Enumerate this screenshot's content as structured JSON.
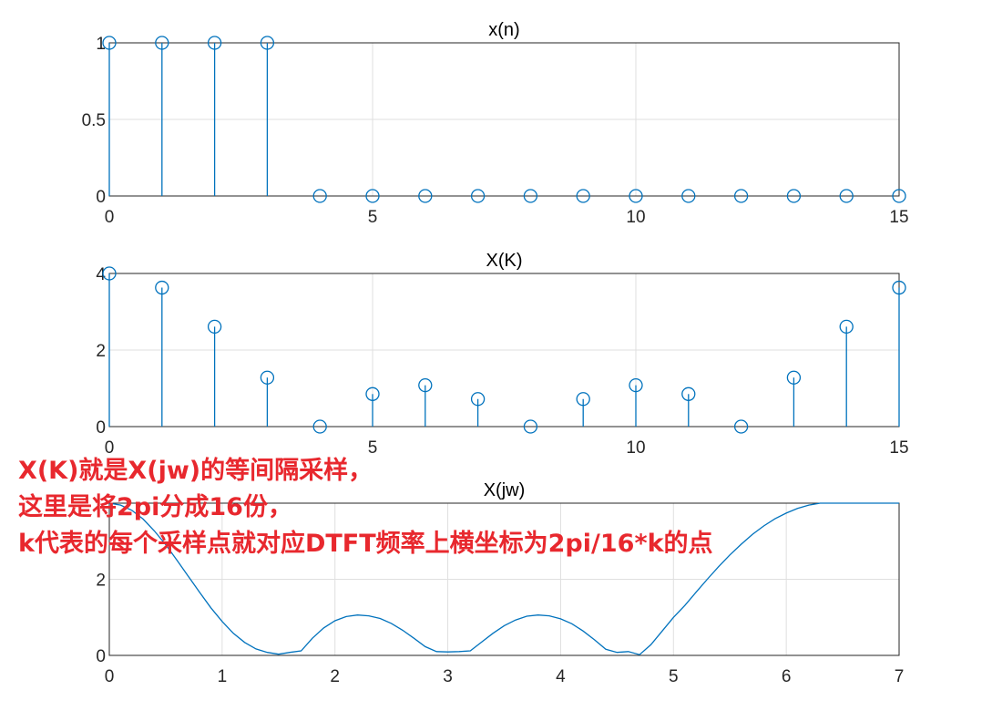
{
  "colors": {
    "series": "#0072bd",
    "annotation": "#e8282e",
    "grid": "#dfdfdf",
    "axis": "#262626"
  },
  "chart_data": [
    {
      "type": "stem",
      "title": "x(n)",
      "xlim": [
        0,
        15
      ],
      "ylim": [
        0,
        1
      ],
      "xticks": [
        0,
        5,
        10,
        15
      ],
      "yticks": [
        0,
        0.5,
        1
      ],
      "grid": true,
      "x": [
        0,
        1,
        2,
        3,
        4,
        5,
        6,
        7,
        8,
        9,
        10,
        11,
        12,
        13,
        14,
        15
      ],
      "y": [
        1,
        1,
        1,
        1,
        0,
        0,
        0,
        0,
        0,
        0,
        0,
        0,
        0,
        0,
        0,
        0
      ]
    },
    {
      "type": "stem",
      "title": "X(K)",
      "xlim": [
        0,
        15
      ],
      "ylim": [
        0,
        4
      ],
      "xticks": [
        0,
        5,
        10,
        15
      ],
      "yticks": [
        0,
        2,
        4
      ],
      "grid": true,
      "x": [
        0,
        1,
        2,
        3,
        4,
        5,
        6,
        7,
        8,
        9,
        10,
        11,
        12,
        13,
        14,
        15
      ],
      "y": [
        4,
        3.63,
        2.61,
        1.28,
        0,
        0.85,
        1.08,
        0.72,
        0,
        0.72,
        1.08,
        0.85,
        0,
        1.28,
        2.61,
        3.63
      ]
    },
    {
      "type": "line",
      "title": "X(jw)",
      "xlim": [
        0,
        7
      ],
      "ylim": [
        0,
        4
      ],
      "xticks": [
        0,
        1,
        2,
        3,
        4,
        5,
        6,
        7
      ],
      "yticks": [
        0,
        2
      ],
      "grid": true,
      "x": [
        0,
        0.1,
        0.2,
        0.3,
        0.4,
        0.5,
        0.6,
        0.7,
        0.8,
        0.9,
        1.0,
        1.1,
        1.2,
        1.3,
        1.4,
        1.5,
        1.6,
        1.7,
        1.8,
        1.9,
        2.0,
        2.1,
        2.2,
        2.3,
        2.4,
        2.5,
        2.6,
        2.7,
        2.8,
        2.9,
        3.0,
        3.1,
        3.2,
        3.3,
        3.4,
        3.5,
        3.6,
        3.7,
        3.8,
        3.9,
        4.0,
        4.1,
        4.2,
        4.3,
        4.4,
        4.5,
        4.6,
        4.7,
        4.8,
        4.9,
        5.0,
        5.1,
        5.2,
        5.3,
        5.4,
        5.5,
        5.6,
        5.7,
        5.8,
        5.9,
        6.0,
        6.1,
        6.2,
        6.3,
        6.4,
        6.5,
        6.6,
        6.7,
        6.8,
        6.9,
        7.0
      ],
      "y": [
        4.0,
        3.95,
        3.81,
        3.58,
        3.27,
        2.91,
        2.5,
        2.08,
        1.66,
        1.25,
        0.89,
        0.58,
        0.34,
        0.17,
        0.08,
        0.03,
        0.08,
        0.12,
        0.45,
        0.72,
        0.91,
        1.02,
        1.06,
        1.04,
        0.97,
        0.84,
        0.66,
        0.45,
        0.23,
        0.1,
        0.09,
        0.1,
        0.12,
        0.35,
        0.58,
        0.78,
        0.93,
        1.03,
        1.06,
        1.04,
        0.96,
        0.83,
        0.64,
        0.41,
        0.16,
        0.08,
        0.1,
        0.02,
        0.28,
        0.64,
        1.0,
        1.31,
        1.66,
        2.0,
        2.33,
        2.64,
        2.92,
        3.18,
        3.4,
        3.59,
        3.74,
        3.86,
        3.95,
        4.0,
        4.0,
        4.0,
        4.0,
        4.0,
        4.0,
        4.0,
        4.0
      ]
    }
  ],
  "annotation": {
    "lines": [
      "X(K)就是X(jw)的等间隔采样，",
      "这里是将2pi分成16份，",
      "k代表的每个采样点就对应DTFT频率上横坐标为2pi/16*k的点"
    ]
  }
}
